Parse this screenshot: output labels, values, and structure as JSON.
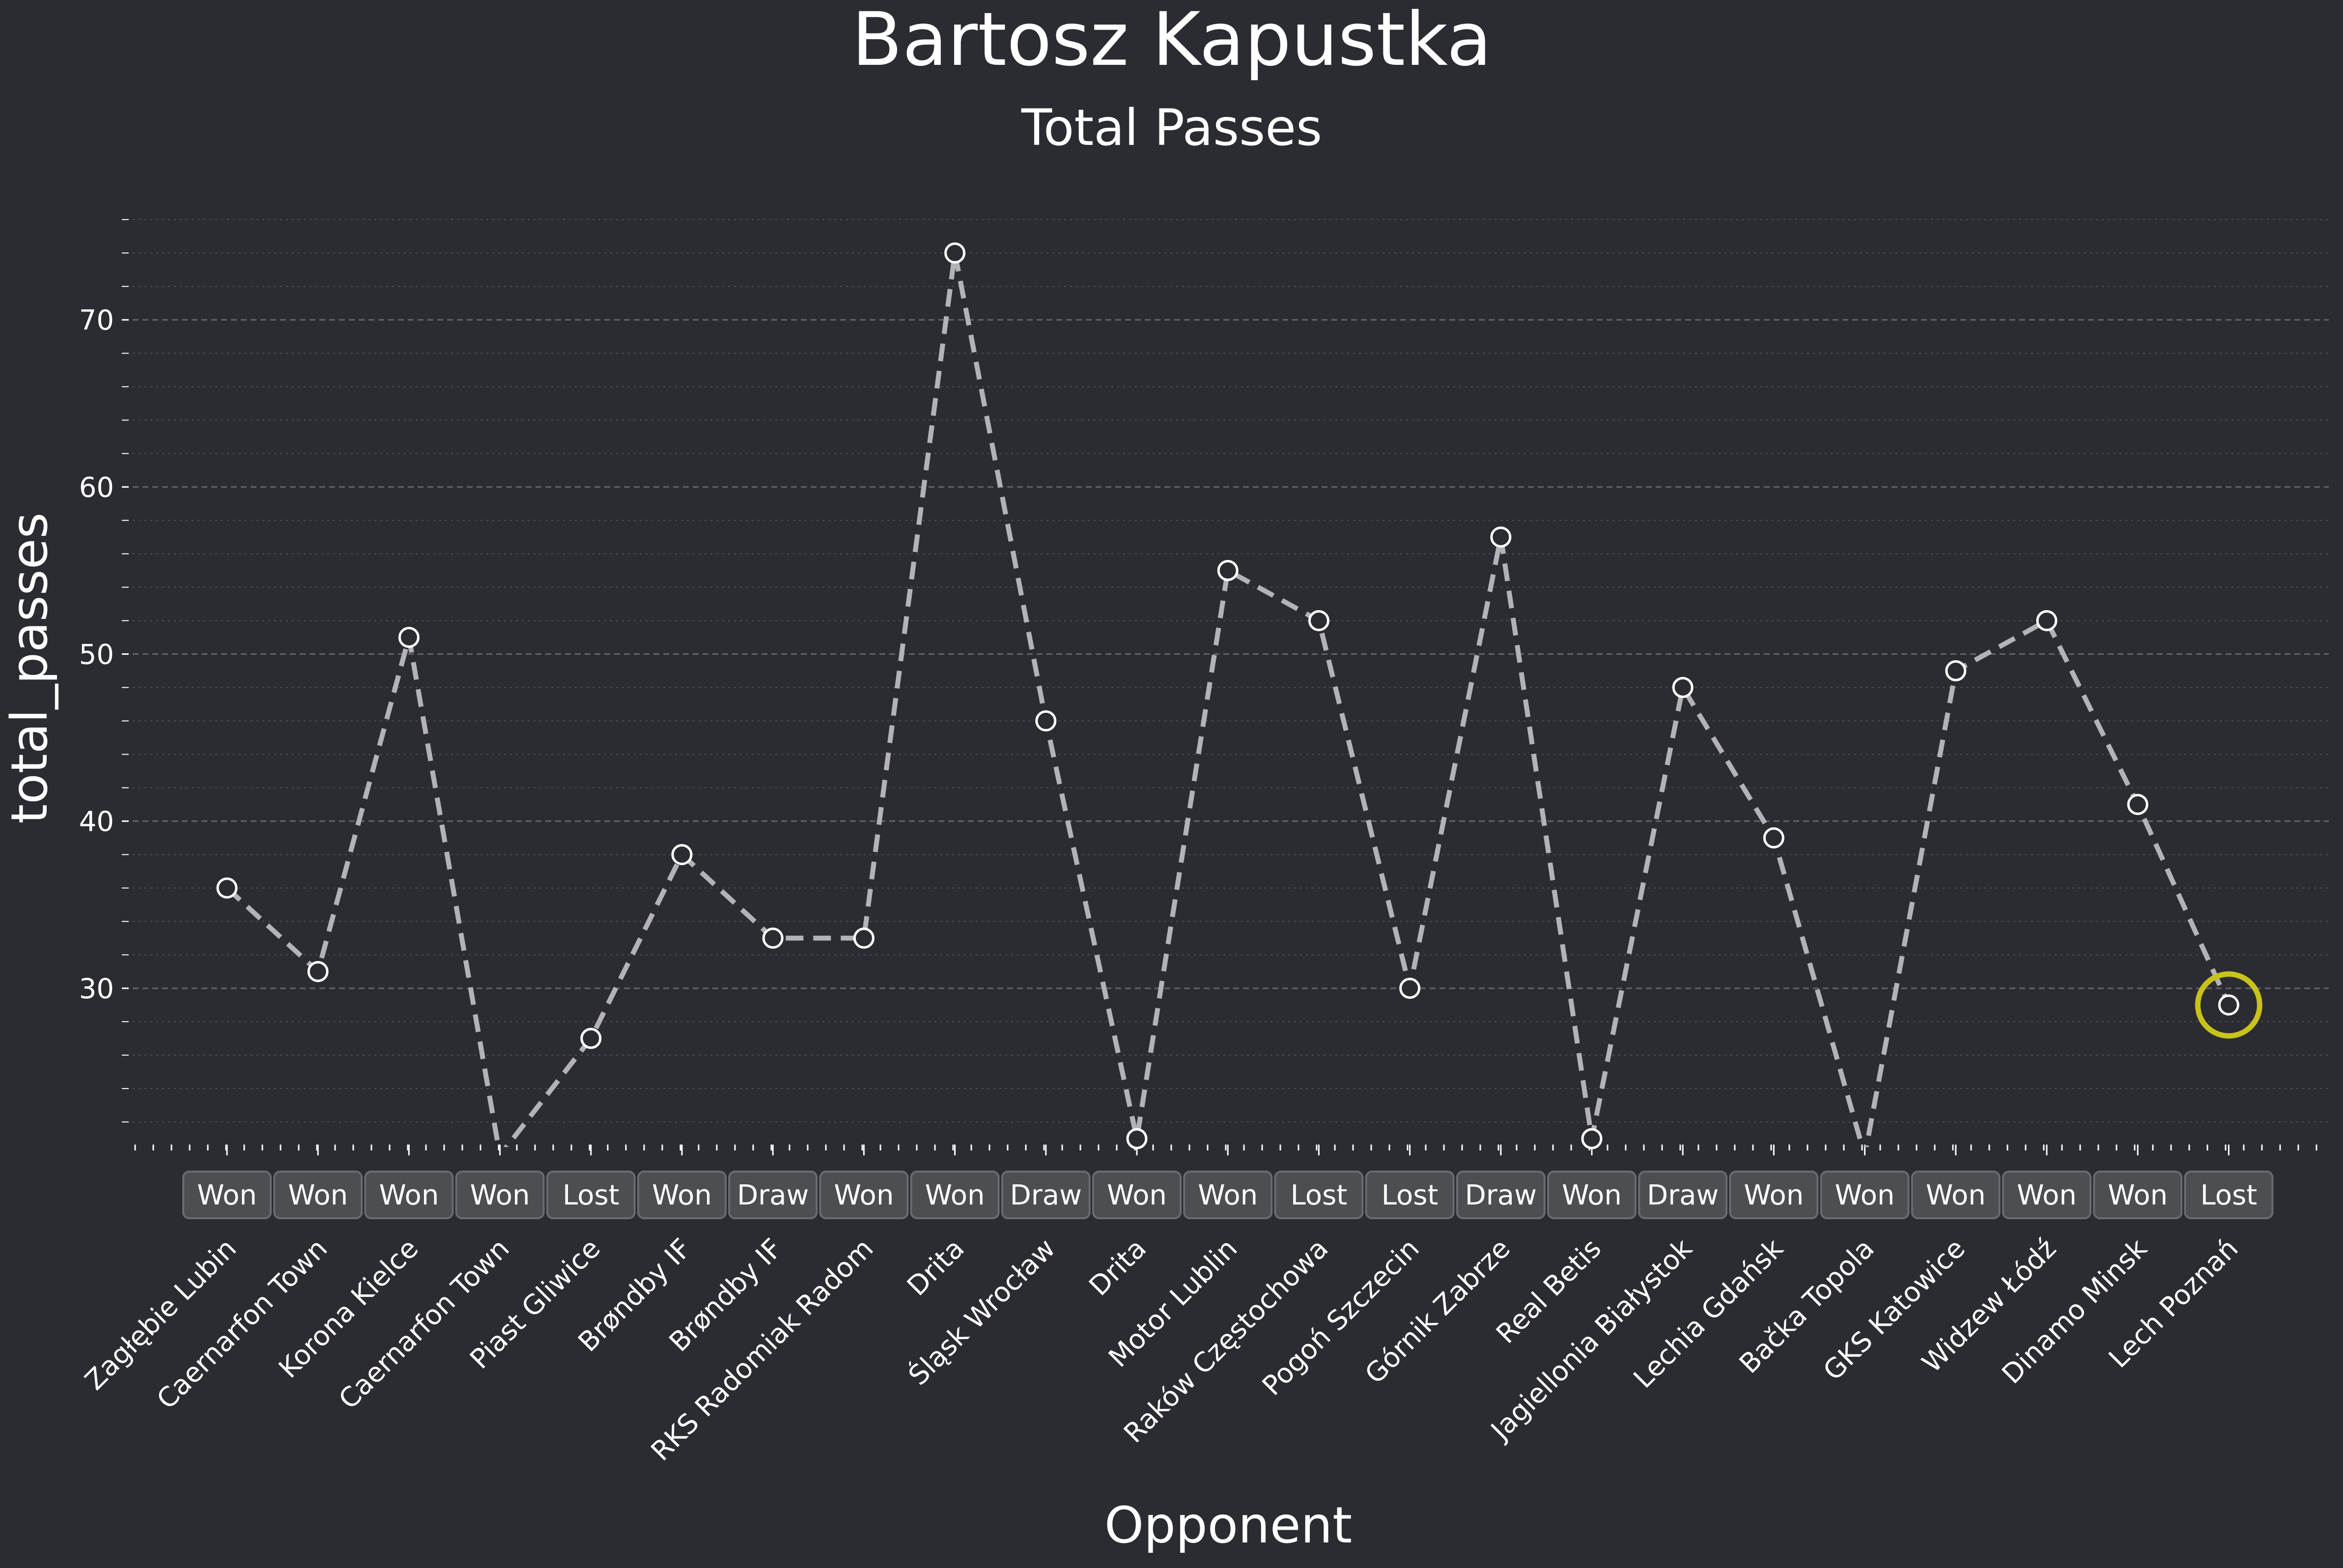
{
  "title": "Bartosz Kapustka",
  "subtitle": "Total Passes",
  "colors": {
    "background": "#2b2c31",
    "line": "#b3b2b6",
    "marker_fill": "#2b2c31",
    "marker_edge": "#ffffff",
    "highlight": "#c8c21c",
    "grid": "#6a6b70",
    "text": "#ffffff"
  },
  "chart_data": {
    "type": "line",
    "title": "Bartosz Kapustka",
    "subtitle": "Total Passes",
    "xlabel": "Opponent",
    "ylabel": "total_passes",
    "ylim": [
      20.5,
      76.5
    ],
    "yticks": [
      30,
      40,
      50,
      60,
      70
    ],
    "grid": true,
    "line_style": "dashed",
    "categories": [
      "Zagłębie Lubin",
      "Caernarfon Town",
      "Korona Kielce",
      "Caernarfon Town",
      "Piast Gliwice",
      "Brøndby IF",
      "Brøndby IF",
      "RKS Radomiak Radom",
      "Drita",
      "Śląsk Wrocław",
      "Drita",
      "Motor Lublin",
      "Raków Częstochowa",
      "Pogoń Szczecin",
      "Górnik Zabrze",
      "Real Betis",
      "Jagiellonia Białystok",
      "Lechia Gdańsk",
      "Bačka Topola",
      "GKS Katowice",
      "Widzew Łódź",
      "Dinamo Minsk",
      "Lech Poznań"
    ],
    "values": [
      36,
      31,
      51,
      20,
      27,
      38,
      33,
      33,
      74,
      46,
      21,
      55,
      52,
      30,
      57,
      21,
      48,
      39,
      20,
      49,
      52,
      41,
      29
    ],
    "results": [
      "Won",
      "Won",
      "Won",
      "Won",
      "Lost",
      "Won",
      "Draw",
      "Won",
      "Won",
      "Draw",
      "Won",
      "Won",
      "Lost",
      "Lost",
      "Draw",
      "Won",
      "Draw",
      "Won",
      "Won",
      "Won",
      "Won",
      "Won",
      "Lost"
    ],
    "highlight_index": 22
  }
}
